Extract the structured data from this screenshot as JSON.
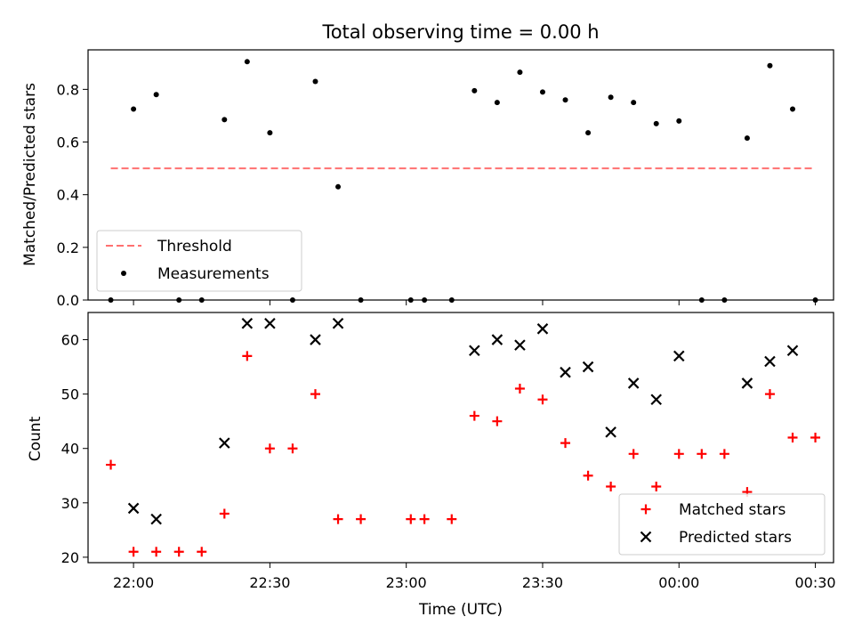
{
  "chart_data": [
    {
      "type": "scatter",
      "title": "Total observing time = 0.00 h",
      "xlabel": "",
      "ylabel": "Matched/Predicted stars",
      "ylim": [
        0,
        0.95
      ],
      "yticks": [
        "0.0",
        "0.2",
        "0.4",
        "0.6",
        "0.8"
      ],
      "grid": false,
      "legend": "lower-left",
      "threshold": {
        "name": "Threshold",
        "value": 0.5,
        "x_start": "21:55",
        "x_end": "00:30",
        "color": "#ff7070"
      },
      "series": [
        {
          "name": "Measurements",
          "color": "#000000",
          "x": [
            "21:55",
            "22:00",
            "22:05",
            "22:10",
            "22:15",
            "22:20",
            "22:25",
            "22:30",
            "22:35",
            "22:40",
            "22:45",
            "22:50",
            "23:01",
            "23:04",
            "23:10",
            "23:15",
            "23:20",
            "23:25",
            "23:30",
            "23:35",
            "23:40",
            "23:45",
            "23:50",
            "23:55",
            "00:00",
            "00:05",
            "00:10",
            "00:15",
            "00:20",
            "00:25",
            "00:30"
          ],
          "values": [
            0.0,
            0.725,
            0.78,
            0.0,
            0.0,
            0.685,
            0.905,
            0.635,
            0.0,
            0.83,
            0.43,
            0.0,
            0.0,
            0.0,
            0.0,
            0.795,
            0.75,
            0.865,
            0.79,
            0.76,
            0.635,
            0.77,
            0.75,
            0.67,
            0.68,
            0.0,
            0.0,
            0.615,
            0.89,
            0.725,
            0.0
          ]
        }
      ]
    },
    {
      "type": "scatter",
      "title": "",
      "xlabel": "Time (UTC)",
      "ylabel": "Count",
      "ylim": [
        19,
        65
      ],
      "yticks": [
        "20",
        "30",
        "40",
        "50",
        "60"
      ],
      "xticks": [
        "22:00",
        "22:30",
        "23:00",
        "23:30",
        "00:00",
        "00:30"
      ],
      "grid": false,
      "legend": "lower-right",
      "series": [
        {
          "name": "Matched stars",
          "color": "#ff0000",
          "x": [
            "21:55",
            "22:00",
            "22:05",
            "22:10",
            "22:15",
            "22:20",
            "22:25",
            "22:30",
            "22:35",
            "22:40",
            "22:45",
            "22:50",
            "23:01",
            "23:04",
            "23:10",
            "23:15",
            "23:20",
            "23:25",
            "23:30",
            "23:35",
            "23:40",
            "23:45",
            "23:50",
            "23:55",
            "00:00",
            "00:05",
            "00:10",
            "00:15",
            "00:20",
            "00:25",
            "00:30"
          ],
          "values": [
            37,
            21,
            21,
            21,
            21,
            28,
            57,
            40,
            40,
            50,
            27,
            27,
            27,
            27,
            27,
            46,
            45,
            51,
            49,
            41,
            35,
            33,
            39,
            33,
            39,
            39,
            39,
            32,
            50,
            42,
            42
          ]
        },
        {
          "name": "Predicted stars",
          "color": "#000000",
          "x": [
            "22:00",
            "22:05",
            "22:20",
            "22:25",
            "22:30",
            "22:40",
            "22:45",
            "23:15",
            "23:20",
            "23:25",
            "23:30",
            "23:35",
            "23:40",
            "23:45",
            "23:50",
            "23:55",
            "00:00",
            "00:15",
            "00:20",
            "00:25"
          ],
          "values": [
            29,
            27,
            41,
            63,
            63,
            60,
            63,
            58,
            60,
            59,
            62,
            54,
            55,
            43,
            52,
            49,
            57,
            52,
            56,
            58
          ]
        }
      ]
    }
  ]
}
